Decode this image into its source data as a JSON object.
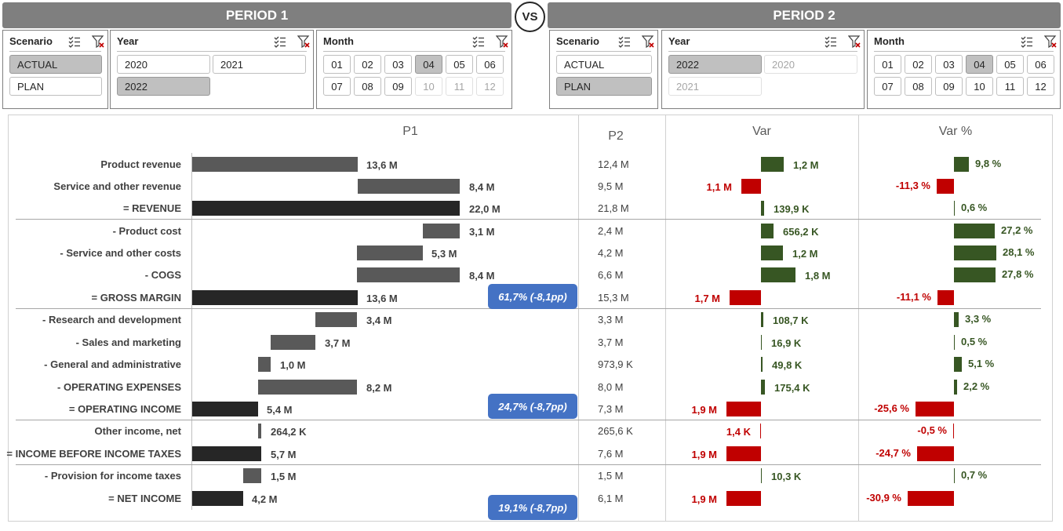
{
  "period1": {
    "title": "PERIOD 1"
  },
  "period2": {
    "title": "PERIOD 2"
  },
  "vs": "VS",
  "slicers": {
    "p1_scenario": {
      "title": "Scenario",
      "items": [
        "ACTUAL",
        "PLAN"
      ]
    },
    "p1_year": {
      "title": "Year",
      "items": [
        "2020",
        "2021",
        "2022"
      ]
    },
    "p1_month": {
      "title": "Month",
      "items": [
        "01",
        "02",
        "03",
        "04",
        "05",
        "06",
        "07",
        "08",
        "09",
        "10",
        "11",
        "12"
      ]
    },
    "p2_scenario": {
      "title": "Scenario",
      "items": [
        "ACTUAL",
        "PLAN"
      ]
    },
    "p2_year": {
      "title": "Year",
      "items": [
        "2022",
        "2020",
        "2021"
      ]
    },
    "p2_month": {
      "title": "Month",
      "items": [
        "01",
        "02",
        "03",
        "04",
        "05",
        "06",
        "07",
        "08",
        "09",
        "10",
        "11",
        "12"
      ]
    }
  },
  "table": {
    "headers": {
      "p1": "P1",
      "p2": "P2",
      "var": "Var",
      "varp": "Var %"
    },
    "rows": [
      {
        "label": "Product revenue",
        "p1": "13,6 M",
        "p2": "12,4 M",
        "var": "1,2 M",
        "varp": "9,8 %"
      },
      {
        "label": "Service and other revenue",
        "p1": "8,4 M",
        "p2": "9,5 M",
        "var": "1,1 M",
        "varp": "-11,3 %"
      },
      {
        "label": "= REVENUE",
        "p1": "22,0 M",
        "p2": "21,8 M",
        "var": "139,9 K",
        "varp": "0,6 %"
      },
      {
        "label": "- Product cost",
        "p1": "3,1 M",
        "p2": "2,4 M",
        "var": "656,2 K",
        "varp": "27,2 %"
      },
      {
        "label": "- Service and other costs",
        "p1": "5,3 M",
        "p2": "4,2 M",
        "var": "1,2 M",
        "varp": "28,1 %"
      },
      {
        "label": "- COGS",
        "p1": "8,4 M",
        "p2": "6,6 M",
        "var": "1,8 M",
        "varp": "27,8 %"
      },
      {
        "label": "= GROSS MARGIN",
        "p1": "13,6 M",
        "p2": "15,3 M",
        "var": "1,7 M",
        "varp": "-11,1 %"
      },
      {
        "label": "- Research and development",
        "p1": "3,4 M",
        "p2": "3,3 M",
        "var": "108,7 K",
        "varp": "3,3 %"
      },
      {
        "label": "- Sales and marketing",
        "p1": "3,7 M",
        "p2": "3,7 M",
        "var": "16,9 K",
        "varp": "0,5 %"
      },
      {
        "label": "- General and administrative",
        "p1": "1,0 M",
        "p2": "973,9 K",
        "var": "49,8 K",
        "varp": "5,1 %"
      },
      {
        "label": "- OPERATING EXPENSES",
        "p1": "8,2 M",
        "p2": "8,0 M",
        "var": "175,4 K",
        "varp": "2,2 %"
      },
      {
        "label": "= OPERATING INCOME",
        "p1": "5,4 M",
        "p2": "7,3 M",
        "var": "1,9 M",
        "varp": "-25,6 %"
      },
      {
        "label": "Other income, net",
        "p1": "264,2 K",
        "p2": "265,6 K",
        "var": "1,4 K",
        "varp": "-0,5 %"
      },
      {
        "label": "= INCOME BEFORE INCOME TAXES",
        "p1": "5,7 M",
        "p2": "7,6 M",
        "var": "1,9 M",
        "varp": "-24,7 %"
      },
      {
        "label": "- Provision for income taxes",
        "p1": "1,5 M",
        "p2": "1,5 M",
        "var": "10,3 K",
        "varp": "0,7 %"
      },
      {
        "label": "= NET INCOME",
        "p1": "4,2 M",
        "p2": "6,1 M",
        "var": "1,9 M",
        "varp": "-30,9 %"
      }
    ],
    "badges": [
      "61,7% (-8,1pp)",
      "24,7% (-8,7pp)",
      "19,1% (-8,7pp)"
    ]
  },
  "colors": {
    "header_bg": "#7f7f7f",
    "positive": "#375623",
    "negative": "#c00000",
    "badge": "#4472c4",
    "bar_mid": "#595959",
    "bar_total": "#262626"
  }
}
